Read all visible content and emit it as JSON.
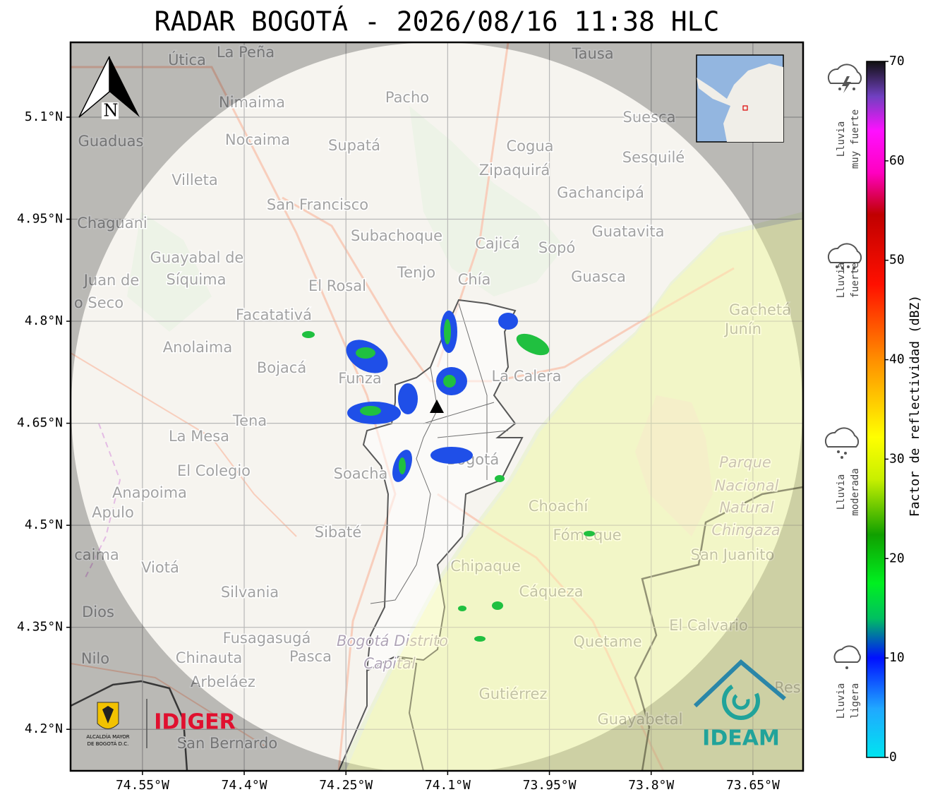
{
  "title": "RADAR BOGOTÁ - 2026/08/16 11:38 HLC",
  "map": {
    "lonlim": [
      -74.656,
      -73.576
    ],
    "latlim": [
      4.139,
      5.21
    ],
    "lon_ticks": [
      {
        "value": -74.55,
        "label": "74.55°W"
      },
      {
        "value": -74.4,
        "label": "74.4°W"
      },
      {
        "value": -74.25,
        "label": "74.25°W"
      },
      {
        "value": -74.1,
        "label": "74.1°W"
      },
      {
        "value": -73.95,
        "label": "73.95°W"
      },
      {
        "value": -73.8,
        "label": "73.8°W"
      },
      {
        "value": -73.65,
        "label": "73.65°W"
      }
    ],
    "lat_ticks": [
      {
        "value": 5.1,
        "label": "5.1°N"
      },
      {
        "value": 4.95,
        "label": "4.95°N"
      },
      {
        "value": 4.8,
        "label": "4.8°N"
      },
      {
        "value": 4.65,
        "label": "4.65°N"
      },
      {
        "value": 4.5,
        "label": "4.5°N"
      },
      {
        "value": 4.35,
        "label": "4.35°N"
      },
      {
        "value": 4.2,
        "label": "4.2°N"
      }
    ],
    "north": "N",
    "places": [
      "La Peña",
      "Útica",
      "Tausa",
      "Pacho",
      "Nimaima",
      "Guaduas",
      "Nocaima",
      "Supatá",
      "Cogua",
      "Suesca",
      "Sesquilé",
      "Zipaquirá",
      "Villeta",
      "Gachancipá",
      "San Francisco",
      "Chaguani",
      "Guatavita",
      "Subachoque",
      "Cajicá",
      "Sopó",
      "Guayabal de",
      "Síquima",
      "Juan de",
      "o Seco",
      "Tenjo",
      "Chía",
      "Guasca",
      "El Rosal",
      "Facatativá",
      "Gachetá",
      "Junín",
      "Anolaima",
      "Bojacá",
      "Funza",
      "La Calera",
      "Tena",
      "La Mesa",
      "El Colegio",
      "Soacha",
      "Bogotá",
      "Anapoima",
      "Apulo",
      "Choachí",
      "Sibaté",
      "Fómeque",
      "San Juanito",
      "caima",
      "Viotá",
      "Chipaque",
      "Silvania",
      "Cáqueza",
      "Dios",
      "El Calvario",
      "Fusagasugá",
      "Quetame",
      "Nilo",
      "Chinauta",
      "Pasca",
      "Arbeláez",
      "Gutiérrez",
      "Res",
      "Guayabetal",
      "San Bernardo"
    ],
    "parks": [
      "Parque",
      "Nacional",
      "Natural",
      "Chingaza",
      "Bogotá Distrito",
      "Capital"
    ]
  },
  "colorbar": {
    "label": "Factor de reflectividad (dBZ)",
    "lim": [
      0,
      70
    ],
    "ticks": [
      0,
      10,
      20,
      30,
      40,
      50,
      60,
      70
    ]
  },
  "rain_levels": [
    [
      "Lluvia",
      "muy fuerte"
    ],
    [
      "Lluvia",
      "fuerte"
    ],
    [
      "Lluvia",
      "moderada"
    ],
    [
      "Lluvia",
      "ligera"
    ]
  ],
  "logos": {
    "alcaldia": [
      "ALCALDÍA MAYOR",
      "DE BOGOTÁ D.C."
    ],
    "idiger": "IDIGER",
    "ideam": "IDEAM"
  }
}
